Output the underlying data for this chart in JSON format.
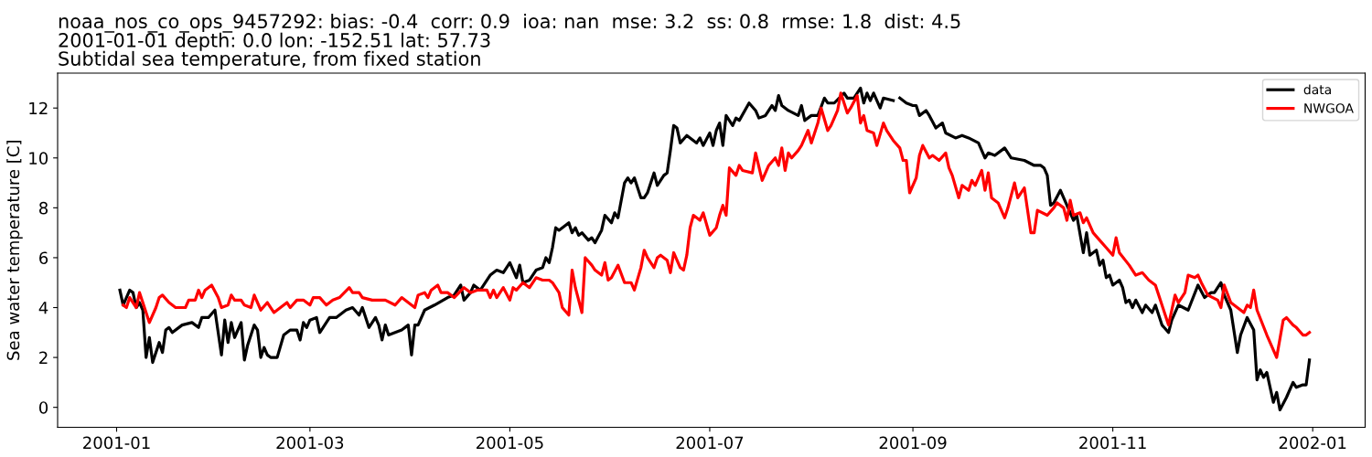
{
  "chart_data": {
    "type": "line",
    "title": "noaa_nos_co_ops_9457292: bias: -0.4  corr: 0.9  ioa: nan  mse: 3.2  ss: 0.8  rmse: 1.8  dist: 4.5\n2001-01-01 depth: 0.0 lon: -152.51 lat: 57.73\nSubtidal sea temperature, from fixed station",
    "ylabel": "Sea water temperature [C]",
    "xlim": [
      "2000-12-14",
      "2002-01-17"
    ],
    "xticks": [
      {
        "value": "2001-01-01",
        "label": "2001-01"
      },
      {
        "value": "2001-03-01",
        "label": "2001-03"
      },
      {
        "value": "2001-05-01",
        "label": "2001-05"
      },
      {
        "value": "2001-07-01",
        "label": "2001-07"
      },
      {
        "value": "2001-09-01",
        "label": "2001-09"
      },
      {
        "value": "2001-11-01",
        "label": "2001-11"
      },
      {
        "value": "2002-01-01",
        "label": "2002-01"
      }
    ],
    "ylim": [
      -0.8,
      13.4
    ],
    "yticks": [
      0,
      2,
      4,
      6,
      8,
      10,
      12
    ],
    "grid": false,
    "legend": "top right",
    "marker": "none",
    "line_style": "solid",
    "series": [
      {
        "name": "data",
        "color": "#000000",
        "x": [
          "2001-01-02",
          "2001-01-03",
          "2001-01-05",
          "2001-01-06",
          "2001-01-07",
          "2001-01-08",
          "2001-01-09",
          "2001-01-10",
          "2001-01-11",
          "2001-01-12",
          "2001-01-14",
          "2001-01-15",
          "2001-01-16",
          "2001-01-17",
          "2001-01-18",
          "2001-01-21",
          "2001-01-24",
          "2001-01-26",
          "2001-01-27",
          "2001-01-29",
          "2001-01-31",
          "2001-02-02",
          "2001-02-03",
          "2001-02-04",
          "2001-02-05",
          "2001-02-06",
          "2001-02-08",
          "2001-02-09",
          "2001-02-10",
          "2001-02-12",
          "2001-02-13",
          "2001-02-14",
          "2001-02-15",
          "2001-02-16",
          "2001-02-17",
          "2001-02-19",
          "2001-02-21",
          "2001-02-23",
          "2001-02-25",
          "2001-02-26",
          "2001-02-27",
          "2001-02-28",
          "2001-03-01",
          "2001-03-03",
          "2001-03-04",
          "2001-03-07",
          "2001-03-09",
          "2001-03-12",
          "2001-03-14",
          "2001-03-16",
          "2001-03-17",
          "2001-03-19",
          "2001-03-21",
          "2001-03-22",
          "2001-03-23",
          "2001-03-24",
          "2001-03-25",
          "2001-03-29",
          "2001-03-31",
          "2001-04-01",
          "2001-04-02",
          "2001-04-03",
          "2001-04-05",
          "2001-04-08",
          "2001-04-12",
          "2001-04-14",
          "2001-04-16",
          "2001-04-17",
          "2001-04-19",
          "2001-04-20",
          "2001-04-22",
          "2001-04-25",
          "2001-04-27",
          "2001-04-29",
          "2001-05-01",
          "2001-05-03",
          "2001-05-04",
          "2001-05-05",
          "2001-05-07",
          "2001-05-09",
          "2001-05-11",
          "2001-05-12",
          "2001-05-13",
          "2001-05-14",
          "2001-05-15",
          "2001-05-16",
          "2001-05-19",
          "2001-05-20",
          "2001-05-21",
          "2001-05-22",
          "2001-05-23",
          "2001-05-25",
          "2001-05-26",
          "2001-05-27",
          "2001-05-29",
          "2001-05-30",
          "2001-06-01",
          "2001-06-02",
          "2001-06-03",
          "2001-06-05",
          "2001-06-06",
          "2001-06-07",
          "2001-06-08",
          "2001-06-10",
          "2001-06-11",
          "2001-06-12",
          "2001-06-14",
          "2001-06-15",
          "2001-06-17",
          "2001-06-18",
          "2001-06-19",
          "2001-06-20",
          "2001-06-21",
          "2001-06-22",
          "2001-06-24",
          "2001-06-27",
          "2001-06-28",
          "2001-06-29",
          "2001-07-01",
          "2001-07-02",
          "2001-07-03",
          "2001-07-04",
          "2001-07-05",
          "2001-07-06",
          "2001-07-08",
          "2001-07-09",
          "2001-07-10",
          "2001-07-13",
          "2001-07-15",
          "2001-07-16",
          "2001-07-18",
          "2001-07-20",
          "2001-07-21",
          "2001-07-22",
          "2001-07-23",
          "2001-07-25",
          "2001-07-28",
          "2001-07-29",
          "2001-07-30",
          "2001-08-01",
          "2001-08-03",
          "2001-08-05",
          "2001-08-06",
          "2001-08-08",
          "2001-08-11",
          "2001-08-12",
          "2001-08-14",
          "2001-08-16",
          "2001-08-17",
          "2001-08-18",
          "2001-08-19",
          "2001-08-20",
          "2001-08-22",
          "2001-08-23",
          "2001-08-26",
          "2001-08-27",
          "2001-08-28",
          "2001-08-30",
          "2001-09-01",
          "2001-09-02",
          "2001-09-03",
          "2001-09-05",
          "2001-09-06",
          "2001-09-08",
          "2001-09-10",
          "2001-09-11",
          "2001-09-14",
          "2001-09-16",
          "2001-09-18",
          "2001-09-21",
          "2001-09-23",
          "2001-09-24",
          "2001-09-26",
          "2001-09-29",
          "2001-10-01",
          "2001-10-05",
          "2001-10-08",
          "2001-10-10",
          "2001-10-11",
          "2001-10-12",
          "2001-10-13",
          "2001-10-14",
          "2001-10-16",
          "2001-10-17",
          "2001-10-20",
          "2001-10-21",
          "2001-10-23",
          "2001-10-24",
          "2001-10-25",
          "2001-10-27",
          "2001-10-28",
          "2001-10-29",
          "2001-10-30",
          "2001-10-31",
          "2001-11-01",
          "2001-11-03",
          "2001-11-04",
          "2001-11-05",
          "2001-11-06",
          "2001-11-07",
          "2001-11-08",
          "2001-11-10",
          "2001-11-11",
          "2001-11-13",
          "2001-11-14",
          "2001-11-16",
          "2001-11-18",
          "2001-11-19",
          "2001-11-21",
          "2001-11-24",
          "2001-11-27",
          "2001-11-29",
          "2001-12-01",
          "2001-12-02",
          "2001-12-04",
          "2001-12-05",
          "2001-12-07",
          "2001-12-09",
          "2001-12-10",
          "2001-12-12",
          "2001-12-14",
          "2001-12-15",
          "2001-12-16",
          "2001-12-17",
          "2001-12-18",
          "2001-12-19",
          "2001-12-20",
          "2001-12-21",
          "2001-12-22",
          "2001-12-24",
          "2001-12-26",
          "2001-12-27",
          "2001-12-29",
          "2001-12-30",
          "2001-12-31"
        ],
        "values": [
          4.7,
          4.1,
          4.7,
          4.6,
          4.0,
          4.2,
          3.9,
          2.0,
          2.8,
          1.8,
          2.6,
          2.2,
          3.1,
          3.2,
          3.0,
          3.3,
          3.4,
          3.2,
          3.6,
          3.6,
          3.9,
          2.1,
          3.5,
          2.6,
          3.4,
          2.8,
          3.4,
          1.9,
          2.5,
          3.3,
          3.1,
          2.0,
          2.4,
          2.1,
          2.0,
          2.0,
          2.9,
          3.1,
          3.1,
          2.7,
          3.4,
          3.2,
          3.5,
          3.6,
          3.0,
          3.6,
          3.6,
          3.9,
          4.0,
          3.7,
          4.0,
          3.2,
          3.6,
          3.3,
          2.7,
          3.3,
          2.9,
          3.1,
          3.3,
          2.1,
          3.3,
          3.3,
          3.9,
          4.1,
          4.4,
          4.5,
          4.9,
          4.3,
          4.6,
          4.9,
          4.7,
          5.3,
          5.5,
          5.4,
          5.8,
          5.2,
          5.7,
          5.0,
          5.1,
          5.5,
          5.6,
          6.0,
          5.8,
          6.4,
          7.2,
          7.1,
          7.4,
          7.0,
          7.2,
          6.9,
          7.0,
          6.7,
          6.8,
          6.6,
          7.1,
          7.7,
          7.4,
          7.8,
          7.6,
          9.0,
          9.2,
          9.0,
          9.2,
          8.4,
          8.4,
          8.6,
          9.4,
          8.9,
          9.3,
          9.4,
          10.3,
          11.3,
          11.2,
          10.6,
          10.9,
          10.6,
          10.8,
          10.5,
          11.0,
          10.5,
          11.1,
          11.4,
          10.5,
          11.7,
          11.3,
          11.6,
          11.5,
          12.2,
          11.9,
          11.6,
          11.7,
          12.1,
          11.9,
          12.5,
          12.1,
          11.9,
          11.7,
          12.1,
          11.5,
          11.7,
          11.7,
          12.4,
          12.2,
          12.2,
          12.6,
          12.4,
          12.4,
          12.8,
          12.2,
          12.6,
          12.3,
          12.6,
          12.0,
          12.4,
          12.3,
          null,
          12.4,
          12.2,
          12.1,
          12.1,
          11.7,
          11.9,
          11.7,
          11.2,
          11.4,
          11.0,
          10.8,
          10.9,
          10.8,
          10.6,
          10.0,
          10.2,
          10.1,
          10.4,
          10.0,
          9.9,
          9.7,
          9.7,
          9.6,
          9.3,
          8.1,
          8.2,
          8.7,
          8.4,
          7.5,
          7.7,
          6.2,
          7.0,
          6.1,
          6.3,
          5.7,
          5.9,
          5.2,
          5.3,
          4.9,
          5.1,
          4.8,
          4.2,
          4.3,
          4.0,
          4.3,
          3.8,
          4.1,
          3.8,
          4.1,
          3.3,
          3.0,
          3.5,
          4.1,
          3.9,
          4.9,
          4.4,
          4.6,
          4.6,
          5.0,
          4.5,
          3.9,
          2.2,
          2.9,
          3.6,
          3.1,
          1.1,
          1.5,
          1.2,
          1.4,
          0.8,
          0.2,
          0.6,
          -0.1,
          0.4,
          1.0,
          0.8,
          0.9,
          0.9,
          1.9
        ]
      },
      {
        "name": "NWGOA",
        "color": "#ff0000",
        "x": [
          "2001-01-03",
          "2001-01-04",
          "2001-01-05",
          "2001-01-07",
          "2001-01-08",
          "2001-01-09",
          "2001-01-11",
          "2001-01-13",
          "2001-01-14",
          "2001-01-15",
          "2001-01-17",
          "2001-01-19",
          "2001-01-20",
          "2001-01-22",
          "2001-01-23",
          "2001-01-25",
          "2001-01-26",
          "2001-01-27",
          "2001-01-28",
          "2001-01-30",
          "2001-02-01",
          "2001-02-02",
          "2001-02-04",
          "2001-02-05",
          "2001-02-06",
          "2001-02-08",
          "2001-02-09",
          "2001-02-11",
          "2001-02-12",
          "2001-02-14",
          "2001-02-16",
          "2001-02-18",
          "2001-02-20",
          "2001-02-22",
          "2001-02-23",
          "2001-02-25",
          "2001-02-27",
          "2001-03-01",
          "2001-03-02",
          "2001-03-04",
          "2001-03-06",
          "2001-03-08",
          "2001-03-10",
          "2001-03-13",
          "2001-03-14",
          "2001-03-16",
          "2001-03-17",
          "2001-03-20",
          "2001-03-21",
          "2001-03-24",
          "2001-03-27",
          "2001-03-29",
          "2001-03-31",
          "2001-04-02",
          "2001-04-03",
          "2001-04-05",
          "2001-04-06",
          "2001-04-07",
          "2001-04-09",
          "2001-04-10",
          "2001-04-12",
          "2001-04-14",
          "2001-04-17",
          "2001-04-19",
          "2001-04-21",
          "2001-04-24",
          "2001-04-25",
          "2001-04-26",
          "2001-04-27",
          "2001-04-29",
          "2001-05-01",
          "2001-05-02",
          "2001-05-03",
          "2001-05-05",
          "2001-05-07",
          "2001-05-09",
          "2001-05-11",
          "2001-05-13",
          "2001-05-14",
          "2001-05-16",
          "2001-05-17",
          "2001-05-19",
          "2001-05-20",
          "2001-05-21",
          "2001-05-23",
          "2001-05-24",
          "2001-05-26",
          "2001-05-27",
          "2001-05-29",
          "2001-05-30",
          "2001-05-31",
          "2001-06-01",
          "2001-06-03",
          "2001-06-05",
          "2001-06-07",
          "2001-06-08",
          "2001-06-10",
          "2001-06-11",
          "2001-06-12",
          "2001-06-14",
          "2001-06-15",
          "2001-06-16",
          "2001-06-18",
          "2001-06-19",
          "2001-06-20",
          "2001-06-22",
          "2001-06-23",
          "2001-06-24",
          "2001-06-25",
          "2001-06-26",
          "2001-06-28",
          "2001-06-29",
          "2001-07-01",
          "2001-07-03",
          "2001-07-04",
          "2001-07-05",
          "2001-07-06",
          "2001-07-07",
          "2001-07-09",
          "2001-07-10",
          "2001-07-11",
          "2001-07-14",
          "2001-07-15",
          "2001-07-17",
          "2001-07-19",
          "2001-07-21",
          "2001-07-22",
          "2001-07-23",
          "2001-07-24",
          "2001-07-25",
          "2001-07-26",
          "2001-07-28",
          "2001-07-29",
          "2001-07-31",
          "2001-08-01",
          "2001-08-03",
          "2001-08-04",
          "2001-08-06",
          "2001-08-07",
          "2001-08-09",
          "2001-08-10",
          "2001-08-12",
          "2001-08-13",
          "2001-08-15",
          "2001-08-16",
          "2001-08-17",
          "2001-08-18",
          "2001-08-20",
          "2001-08-21",
          "2001-08-23",
          "2001-08-24",
          "2001-08-26",
          "2001-08-28",
          "2001-08-29",
          "2001-08-30",
          "2001-08-31",
          "2001-09-02",
          "2001-09-03",
          "2001-09-04",
          "2001-09-06",
          "2001-09-07",
          "2001-09-09",
          "2001-09-11",
          "2001-09-12",
          "2001-09-13",
          "2001-09-15",
          "2001-09-16",
          "2001-09-18",
          "2001-09-19",
          "2001-09-20",
          "2001-09-22",
          "2001-09-23",
          "2001-09-24",
          "2001-09-25",
          "2001-09-27",
          "2001-09-29",
          "2001-09-30",
          "2001-10-02",
          "2001-10-03",
          "2001-10-05",
          "2001-10-07",
          "2001-10-08",
          "2001-10-09",
          "2001-10-12",
          "2001-10-14",
          "2001-10-15",
          "2001-10-17",
          "2001-10-18",
          "2001-10-19",
          "2001-10-20",
          "2001-10-22",
          "2001-10-23",
          "2001-10-24",
          "2001-10-26",
          "2001-10-28",
          "2001-10-30",
          "2001-11-01",
          "2001-11-02",
          "2001-11-03",
          "2001-11-06",
          "2001-11-08",
          "2001-11-10",
          "2001-11-12",
          "2001-11-14",
          "2001-11-18",
          "2001-11-20",
          "2001-11-21",
          "2001-11-23",
          "2001-11-24",
          "2001-11-26",
          "2001-11-27",
          "2001-11-28",
          "2001-11-30",
          "2001-12-03",
          "2001-12-04",
          "2001-12-05",
          "2001-12-07",
          "2001-12-09",
          "2001-12-11",
          "2001-12-12",
          "2001-12-13",
          "2001-12-14",
          "2001-12-15",
          "2001-12-18",
          "2001-12-21",
          "2001-12-23",
          "2001-12-24",
          "2001-12-26",
          "2001-12-27",
          "2001-12-29",
          "2001-12-30",
          "2001-12-31"
        ],
        "values": [
          4.1,
          4.0,
          4.4,
          4.0,
          4.6,
          4.2,
          3.4,
          4.0,
          4.4,
          4.5,
          4.2,
          4.0,
          4.0,
          4.0,
          4.3,
          4.3,
          4.7,
          4.4,
          4.7,
          4.9,
          4.4,
          4.0,
          4.1,
          4.5,
          4.3,
          4.3,
          4.1,
          4.0,
          4.5,
          3.9,
          4.2,
          3.8,
          4.0,
          4.2,
          4.0,
          4.3,
          4.3,
          4.1,
          4.4,
          4.4,
          4.1,
          4.3,
          4.4,
          4.8,
          4.6,
          4.6,
          4.4,
          4.3,
          4.3,
          4.3,
          4.1,
          4.4,
          4.2,
          4.0,
          4.5,
          4.6,
          4.4,
          4.7,
          4.9,
          4.6,
          4.6,
          4.4,
          4.8,
          4.6,
          4.7,
          4.7,
          4.4,
          4.7,
          4.4,
          4.8,
          4.3,
          4.8,
          4.7,
          5.0,
          4.8,
          5.2,
          5.1,
          5.1,
          5.0,
          4.6,
          4.0,
          3.7,
          5.5,
          4.8,
          3.8,
          6.0,
          5.7,
          5.5,
          5.3,
          5.8,
          5.1,
          5.2,
          5.7,
          5.0,
          5.0,
          4.7,
          5.6,
          6.3,
          6.0,
          5.6,
          6.0,
          6.1,
          5.9,
          5.4,
          6.2,
          5.6,
          5.5,
          6.1,
          7.2,
          7.7,
          7.5,
          7.8,
          6.9,
          7.2,
          7.7,
          8.1,
          7.7,
          9.6,
          9.3,
          9.7,
          9.5,
          9.4,
          10.2,
          9.1,
          9.7,
          10.0,
          9.7,
          10.4,
          9.5,
          10.2,
          10.0,
          10.3,
          10.5,
          11.1,
          10.6,
          11.4,
          12.0,
          11.1,
          11.3,
          11.9,
          12.6,
          11.8,
          12.0,
          12.5,
          11.4,
          11.7,
          11.1,
          11.0,
          10.5,
          11.4,
          11.1,
          10.7,
          10.4,
          9.9,
          9.9,
          8.6,
          9.2,
          10.1,
          10.5,
          10.0,
          10.1,
          9.9,
          10.2,
          9.6,
          9.3,
          8.4,
          8.9,
          8.7,
          9.1,
          8.9,
          9.5,
          8.7,
          9.4,
          8.4,
          8.2,
          7.6,
          8.0,
          9.0,
          8.4,
          8.8,
          7.0,
          7.0,
          7.9,
          7.7,
          8.0,
          8.2,
          8.0,
          7.5,
          8.3,
          7.7,
          7.8,
          7.4,
          7.6,
          7.0,
          6.7,
          6.4,
          6.1,
          6.8,
          6.2,
          5.7,
          5.3,
          5.4,
          5.1,
          4.9,
          3.3,
          4.5,
          4.2,
          4.6,
          5.3,
          5.2,
          5.3,
          5.0,
          4.5,
          4.3,
          4.0,
          4.9,
          4.2,
          4.0,
          3.8,
          4.1,
          4.0,
          4.7,
          3.9,
          2.9,
          2.0,
          3.5,
          3.6,
          3.3,
          3.2,
          2.9,
          2.9,
          3.0
        ]
      }
    ]
  }
}
